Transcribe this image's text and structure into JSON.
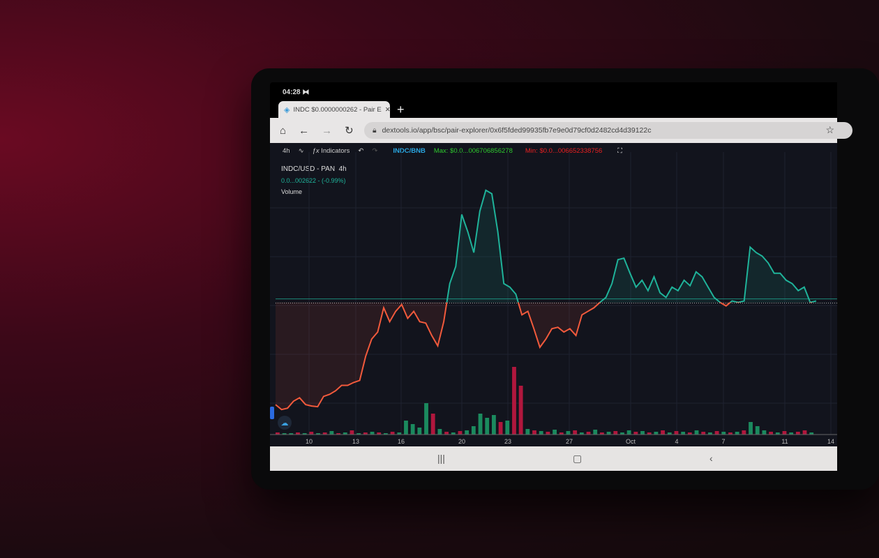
{
  "status_bar": {
    "time": "04:28",
    "icon": "media-icon"
  },
  "browser": {
    "tab_title": "INDC $0.0000000262 - Pair E",
    "new_tab_label": "+",
    "url": "dextools.io/app/bsc/pair-explorer/0x6f5fded99935fb7e9e0d79cf0d2482cd4d39122c"
  },
  "toolbar": {
    "interval": "4h",
    "indicators_label": "Indicators",
    "pair": "INDC/BNB",
    "max": "Max: $0.0...006706856278",
    "min": "Min: $0.0...006652338756"
  },
  "legend": {
    "symbol": "INDC/USD - PAN",
    "interval": "4h",
    "price": "0.0...002622 - (-0.99%)",
    "volume_label": "Volume"
  },
  "colors": {
    "up": "#1fb39a",
    "down": "#f25a3c",
    "vol_up": "#1b8a5e",
    "vol_down": "#b0173d",
    "pair": "#2aa6e0",
    "max": "#2ec82e",
    "min": "#e82020"
  },
  "chart_data": {
    "type": "line",
    "xlabel": "",
    "ylabel": "",
    "x_ticks": [
      "10",
      "13",
      "16",
      "20",
      "23",
      "27",
      "Oct",
      "4",
      "7",
      "11",
      "14"
    ],
    "ylim": [
      0,
      100
    ],
    "baseline": 49.4,
    "price": [
      5.9,
      3.8,
      4.4,
      7.4,
      8.8,
      5.9,
      5.3,
      5,
      9.4,
      10.3,
      11.8,
      14.1,
      14.1,
      15.3,
      16.2,
      26.5,
      33.8,
      36.8,
      47.1,
      41.2,
      45.6,
      48.5,
      42.6,
      45.6,
      41.2,
      40.6,
      35.3,
      30.9,
      41.2,
      57.4,
      64.7,
      86.8,
      79.4,
      70.6,
      88.2,
      97.1,
      95.6,
      79.4,
      57.4,
      55.9,
      52.9,
      44.1,
      45.6,
      38.2,
      30.3,
      33.8,
      38.2,
      38.8,
      36.8,
      38.2,
      35.3,
      44.1,
      45.6,
      47.1,
      49.4,
      51.5,
      57.4,
      67.6,
      68.2,
      61.8,
      55.9,
      58.8,
      54.4,
      60.3,
      53.5,
      51.5,
      55.9,
      54.4,
      58.8,
      56.5,
      62.4,
      60.3,
      55.9,
      51.5,
      49.4,
      47.9,
      50,
      49.4,
      50,
      72.9,
      70.6,
      69.1,
      66.2,
      61.8,
      61.8,
      58.8,
      57.4,
      54.4,
      55.9,
      49.4,
      50
    ],
    "volume": [
      [
        3,
        0
      ],
      [
        2,
        1
      ],
      [
        2,
        1
      ],
      [
        3,
        0
      ],
      [
        2,
        1
      ],
      [
        4,
        0
      ],
      [
        2,
        1
      ],
      [
        3,
        0
      ],
      [
        5,
        1
      ],
      [
        2,
        0
      ],
      [
        3,
        1
      ],
      [
        6,
        0
      ],
      [
        2,
        1
      ],
      [
        3,
        0
      ],
      [
        4,
        1
      ],
      [
        3,
        0
      ],
      [
        2,
        1
      ],
      [
        4,
        0
      ],
      [
        3,
        1
      ],
      [
        20,
        1
      ],
      [
        15,
        1
      ],
      [
        10,
        1
      ],
      [
        45,
        1
      ],
      [
        30,
        0
      ],
      [
        8,
        1
      ],
      [
        4,
        0
      ],
      [
        3,
        1
      ],
      [
        5,
        0
      ],
      [
        6,
        1
      ],
      [
        12,
        1
      ],
      [
        30,
        1
      ],
      [
        24,
        1
      ],
      [
        28,
        1
      ],
      [
        18,
        0
      ],
      [
        20,
        1
      ],
      [
        97,
        0
      ],
      [
        70,
        0
      ],
      [
        8,
        1
      ],
      [
        6,
        0
      ],
      [
        5,
        1
      ],
      [
        4,
        0
      ],
      [
        7,
        1
      ],
      [
        3,
        0
      ],
      [
        5,
        1
      ],
      [
        6,
        0
      ],
      [
        3,
        1
      ],
      [
        4,
        0
      ],
      [
        7,
        1
      ],
      [
        3,
        0
      ],
      [
        4,
        1
      ],
      [
        5,
        0
      ],
      [
        3,
        1
      ],
      [
        6,
        1
      ],
      [
        4,
        0
      ],
      [
        5,
        1
      ],
      [
        3,
        0
      ],
      [
        4,
        1
      ],
      [
        6,
        0
      ],
      [
        3,
        1
      ],
      [
        5,
        0
      ],
      [
        4,
        1
      ],
      [
        3,
        0
      ],
      [
        6,
        1
      ],
      [
        4,
        0
      ],
      [
        3,
        1
      ],
      [
        5,
        0
      ],
      [
        4,
        1
      ],
      [
        3,
        0
      ],
      [
        4,
        1
      ],
      [
        6,
        0
      ],
      [
        18,
        1
      ],
      [
        12,
        1
      ],
      [
        6,
        1
      ],
      [
        4,
        0
      ],
      [
        3,
        1
      ],
      [
        5,
        0
      ],
      [
        3,
        1
      ],
      [
        4,
        0
      ],
      [
        6,
        0
      ],
      [
        3,
        1
      ]
    ]
  }
}
